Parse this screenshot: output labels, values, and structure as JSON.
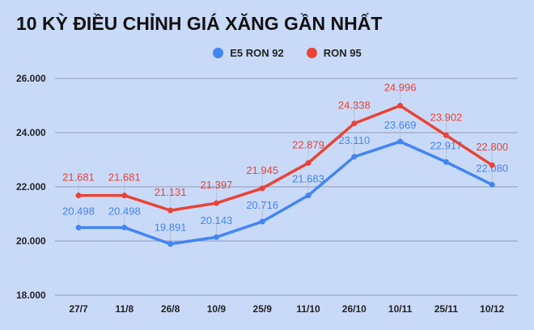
{
  "chart_data": {
    "type": "line",
    "title": "10 KỲ ĐIỀU CHỈNH GIÁ XĂNG GẦN NHẤT",
    "categories": [
      "27/7",
      "11/8",
      "26/8",
      "10/9",
      "25/9",
      "11/10",
      "26/10",
      "10/11",
      "25/11",
      "10/12"
    ],
    "series": [
      {
        "name": "E5 RON 92",
        "color": "#4285f4",
        "values": [
          20498,
          20498,
          19891,
          20143,
          20716,
          21683,
          23110,
          23669,
          22917,
          22080
        ],
        "labels": [
          "20.498",
          "20.498",
          "19.891",
          "20.143",
          "20.716",
          "21.683",
          "23.110",
          "23.669",
          "22.917",
          "22.080"
        ]
      },
      {
        "name": "RON 95",
        "color": "#ea4335",
        "values": [
          21681,
          21681,
          21131,
          21397,
          21945,
          22879,
          24338,
          24996,
          23902,
          22800
        ],
        "labels": [
          "21.681",
          "21.681",
          "21.131",
          "21.397",
          "21.945",
          "22.879",
          "24.338",
          "24.996",
          "23.902",
          "22.800"
        ]
      }
    ],
    "ylim": [
      18000,
      26000
    ],
    "yticks": [
      18000,
      20000,
      22000,
      24000,
      26000
    ],
    "ytick_labels": [
      "18.000",
      "20.000",
      "22.000",
      "24.000",
      "26.000"
    ],
    "grid": true,
    "legend": "top"
  }
}
